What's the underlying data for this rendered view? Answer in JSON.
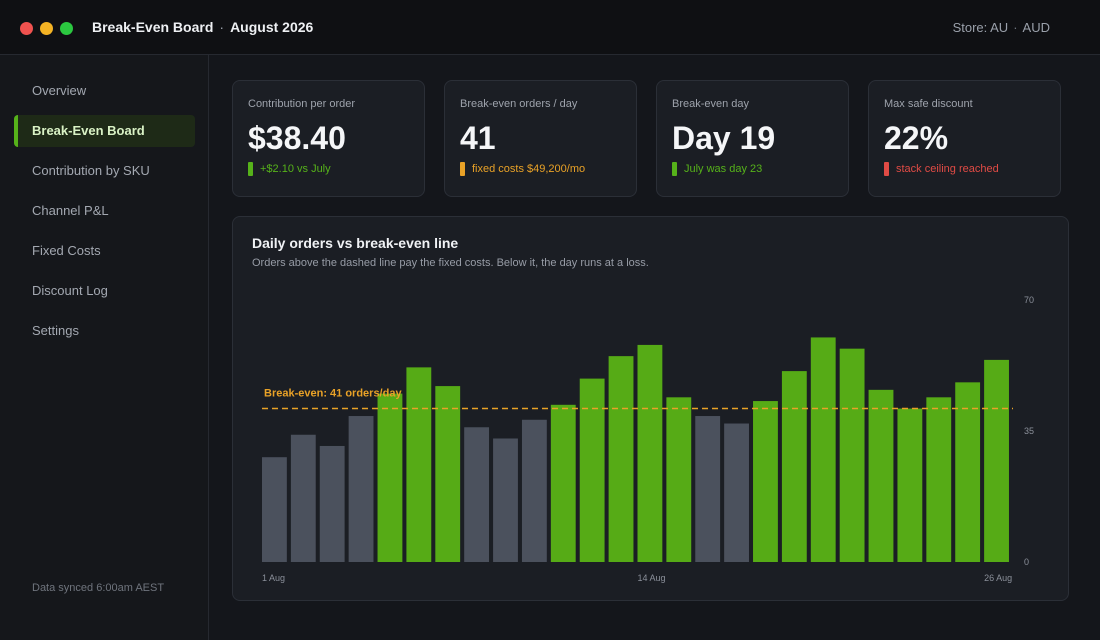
{
  "window": {
    "title": "Break-Even Board",
    "title_sep": "·",
    "period": "August 2026",
    "store_label": "Store: AU",
    "store_sep": "·",
    "currency": "AUD"
  },
  "sidebar": {
    "items": [
      {
        "label": "Overview",
        "active": false
      },
      {
        "label": "Break-Even Board",
        "active": true
      },
      {
        "label": "Contribution by SKU",
        "active": false
      },
      {
        "label": "Channel P&L",
        "active": false
      },
      {
        "label": "Fixed Costs",
        "active": false
      },
      {
        "label": "Discount Log",
        "active": false
      },
      {
        "label": "Settings",
        "active": false
      }
    ],
    "sync_text": "Data synced 6:00am AEST"
  },
  "kpis": [
    {
      "label": "Contribution per order",
      "value": "$38.40",
      "note": "+$2.10 vs July",
      "note_color": "#56b21a"
    },
    {
      "label": "Break-even orders / day",
      "value": "41",
      "note": "fixed costs $49,200/mo",
      "note_color": "#e9a227"
    },
    {
      "label": "Break-even day",
      "value": "Day 19",
      "note": "July was day 23",
      "note_color": "#56b21a"
    },
    {
      "label": "Max safe discount",
      "value": "22%",
      "note": "stack ceiling reached",
      "note_color": "#e04b45"
    }
  ],
  "chart": {
    "title": "Daily orders vs break-even line",
    "subtitle": "Orders above the dashed line pay the fixed costs. Below it, the day runs at a loss.",
    "break_even_label": "Break-even: 41 orders/day"
  },
  "chart_data": {
    "type": "bar",
    "categories": [
      "1 Aug",
      "2 Aug",
      "3 Aug",
      "4 Aug",
      "5 Aug",
      "6 Aug",
      "7 Aug",
      "8 Aug",
      "9 Aug",
      "10 Aug",
      "11 Aug",
      "12 Aug",
      "13 Aug",
      "14 Aug",
      "15 Aug",
      "16 Aug",
      "17 Aug",
      "18 Aug",
      "19 Aug",
      "20 Aug",
      "21 Aug",
      "22 Aug",
      "23 Aug",
      "24 Aug",
      "25 Aug",
      "26 Aug"
    ],
    "values": [
      28,
      34,
      31,
      39,
      45,
      52,
      47,
      36,
      33,
      38,
      42,
      49,
      55,
      58,
      44,
      39,
      37,
      43,
      51,
      60,
      57,
      46,
      41,
      44,
      48,
      54
    ],
    "break_even": 41,
    "ylim": [
      0,
      70
    ],
    "yticks": [
      "0",
      "35",
      "70"
    ],
    "xticks": [
      {
        "index": 0,
        "label": "1 Aug"
      },
      {
        "index": 13,
        "label": "14 Aug"
      },
      {
        "index": 25,
        "label": "26 Aug"
      }
    ],
    "colors": {
      "above": "#56ab16",
      "below": "#4b515d",
      "line": "#e9a227"
    }
  }
}
